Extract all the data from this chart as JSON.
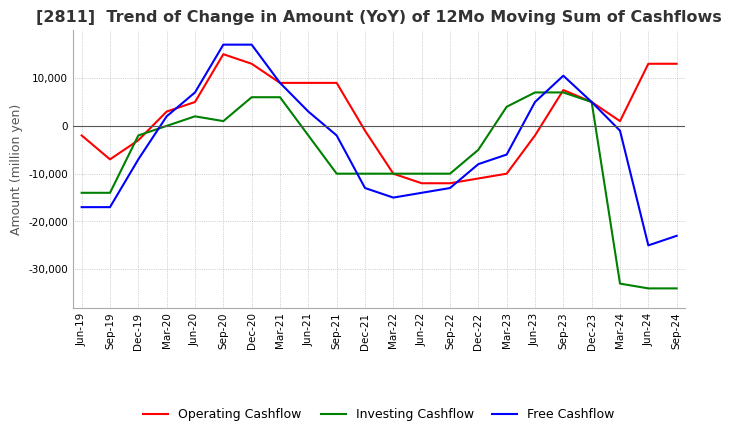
{
  "title": "[2811]  Trend of Change in Amount (YoY) of 12Mo Moving Sum of Cashflows",
  "ylabel": "Amount (million yen)",
  "title_fontsize": 11.5,
  "label_fontsize": 9,
  "tick_fontsize": 7.5,
  "legend_fontsize": 9,
  "background_color": "#ffffff",
  "grid_color": "#aaaaaa",
  "x_labels": [
    "Jun-19",
    "Sep-19",
    "Dec-19",
    "Mar-20",
    "Jun-20",
    "Sep-20",
    "Dec-20",
    "Mar-21",
    "Jun-21",
    "Sep-21",
    "Dec-21",
    "Mar-22",
    "Jun-22",
    "Sep-22",
    "Dec-22",
    "Mar-23",
    "Jun-23",
    "Sep-23",
    "Dec-23",
    "Mar-24",
    "Jun-24",
    "Sep-24"
  ],
  "operating_cashflow": [
    -2000,
    -7000,
    -3000,
    3000,
    5000,
    15000,
    13000,
    9000,
    9000,
    9000,
    -1000,
    -10000,
    -12000,
    -12000,
    -11000,
    -10000,
    -2000,
    7500,
    5000,
    1000,
    13000,
    13000
  ],
  "investing_cashflow": [
    -14000,
    -14000,
    -2000,
    0,
    2000,
    1000,
    6000,
    6000,
    -2000,
    -10000,
    -10000,
    -10000,
    -10000,
    -10000,
    -5000,
    4000,
    7000,
    7000,
    5000,
    -33000,
    -34000,
    -34000
  ],
  "free_cashflow": [
    -17000,
    -17000,
    -7000,
    2000,
    7000,
    17000,
    17000,
    9000,
    3000,
    -2000,
    -13000,
    -15000,
    -14000,
    -13000,
    -8000,
    -6000,
    5000,
    10500,
    5000,
    -1000,
    -25000,
    -23000
  ],
  "operating_color": "#ff0000",
  "investing_color": "#008000",
  "free_color": "#0000ff",
  "ylim": [
    -38000,
    20000
  ],
  "yticks": [
    -30000,
    -20000,
    -10000,
    0,
    10000
  ]
}
